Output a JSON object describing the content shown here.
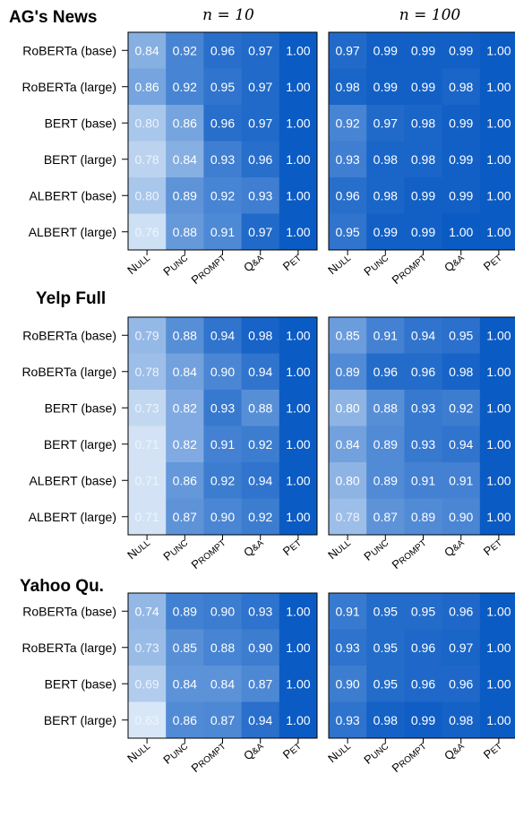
{
  "column_titles": [
    "n = 10",
    "n = 100"
  ],
  "x_categories": [
    "NULL",
    "PUNC",
    "PROMPT",
    "Q&A",
    "PET"
  ],
  "chart_data": [
    {
      "type": "heatmap",
      "title": "AG's News",
      "rows": [
        "RoBERTa (base)",
        "RoBERTa (large)",
        "BERT (base)",
        "BERT (large)",
        "ALBERT (base)",
        "ALBERT (large)"
      ],
      "columns": [
        "NULL",
        "PUNC",
        "PROMPT",
        "Q&A",
        "PET"
      ],
      "panels": [
        {
          "n": "n = 10",
          "values": [
            [
              "0.84",
              "0.92",
              "0.96",
              "0.97",
              "1.00"
            ],
            [
              "0.86",
              "0.92",
              "0.95",
              "0.97",
              "1.00"
            ],
            [
              "0.80",
              "0.86",
              "0.96",
              "0.97",
              "1.00"
            ],
            [
              "0.78",
              "0.84",
              "0.93",
              "0.96",
              "1.00"
            ],
            [
              "0.80",
              "0.89",
              "0.92",
              "0.93",
              "1.00"
            ],
            [
              "0.76",
              "0.88",
              "0.91",
              "0.97",
              "1.00"
            ]
          ]
        },
        {
          "n": "n = 100",
          "values": [
            [
              "0.97",
              "0.99",
              "0.99",
              "0.99",
              "1.00"
            ],
            [
              "0.98",
              "0.99",
              "0.99",
              "0.98",
              "1.00"
            ],
            [
              "0.92",
              "0.97",
              "0.98",
              "0.99",
              "1.00"
            ],
            [
              "0.93",
              "0.98",
              "0.98",
              "0.99",
              "1.00"
            ],
            [
              "0.96",
              "0.98",
              "0.99",
              "0.99",
              "1.00"
            ],
            [
              "0.95",
              "0.99",
              "0.99",
              "1.00",
              "1.00"
            ]
          ]
        }
      ]
    },
    {
      "type": "heatmap",
      "title": "Yelp Full",
      "rows": [
        "RoBERTa (base)",
        "RoBERTa (large)",
        "BERT (base)",
        "BERT (large)",
        "ALBERT (base)",
        "ALBERT (large)"
      ],
      "columns": [
        "NULL",
        "PUNC",
        "PROMPT",
        "Q&A",
        "PET"
      ],
      "panels": [
        {
          "n": "n = 10",
          "values": [
            [
              "0.79",
              "0.88",
              "0.94",
              "0.98",
              "1.00"
            ],
            [
              "0.78",
              "0.84",
              "0.90",
              "0.94",
              "1.00"
            ],
            [
              "0.73",
              "0.82",
              "0.93",
              "0.88",
              "1.00"
            ],
            [
              "0.71",
              "0.82",
              "0.91",
              "0.92",
              "1.00"
            ],
            [
              "0.71",
              "0.86",
              "0.92",
              "0.94",
              "1.00"
            ],
            [
              "0.71",
              "0.87",
              "0.90",
              "0.92",
              "1.00"
            ]
          ]
        },
        {
          "n": "n = 100",
          "values": [
            [
              "0.85",
              "0.91",
              "0.94",
              "0.95",
              "1.00"
            ],
            [
              "0.89",
              "0.96",
              "0.96",
              "0.98",
              "1.00"
            ],
            [
              "0.80",
              "0.88",
              "0.93",
              "0.92",
              "1.00"
            ],
            [
              "0.84",
              "0.89",
              "0.93",
              "0.94",
              "1.00"
            ],
            [
              "0.80",
              "0.89",
              "0.91",
              "0.91",
              "1.00"
            ],
            [
              "0.78",
              "0.87",
              "0.89",
              "0.90",
              "1.00"
            ]
          ]
        }
      ]
    },
    {
      "type": "heatmap",
      "title": "Yahoo Qu.",
      "rows": [
        "RoBERTa (base)",
        "RoBERTa (large)",
        "BERT (base)",
        "BERT (large)"
      ],
      "columns": [
        "NULL",
        "PUNC",
        "PROMPT",
        "Q&A",
        "PET"
      ],
      "panels": [
        {
          "n": "n = 10",
          "values": [
            [
              "0.74",
              "0.89",
              "0.90",
              "0.93",
              "1.00"
            ],
            [
              "0.73",
              "0.85",
              "0.88",
              "0.90",
              "1.00"
            ],
            [
              "0.69",
              "0.84",
              "0.84",
              "0.87",
              "1.00"
            ],
            [
              "0.63",
              "0.86",
              "0.87",
              "0.94",
              "1.00"
            ]
          ]
        },
        {
          "n": "n = 100",
          "values": [
            [
              "0.91",
              "0.95",
              "0.95",
              "0.96",
              "1.00"
            ],
            [
              "0.93",
              "0.95",
              "0.96",
              "0.97",
              "1.00"
            ],
            [
              "0.90",
              "0.95",
              "0.96",
              "0.96",
              "1.00"
            ],
            [
              "0.93",
              "0.98",
              "0.99",
              "0.98",
              "1.00"
            ]
          ]
        }
      ]
    }
  ],
  "colors": {
    "high": "#0b5bc4",
    "low": "#f2f8fd",
    "text_dark": "#ffffff",
    "text_light": "#eef4fb",
    "border": "#000000",
    "tick": "#000000"
  }
}
